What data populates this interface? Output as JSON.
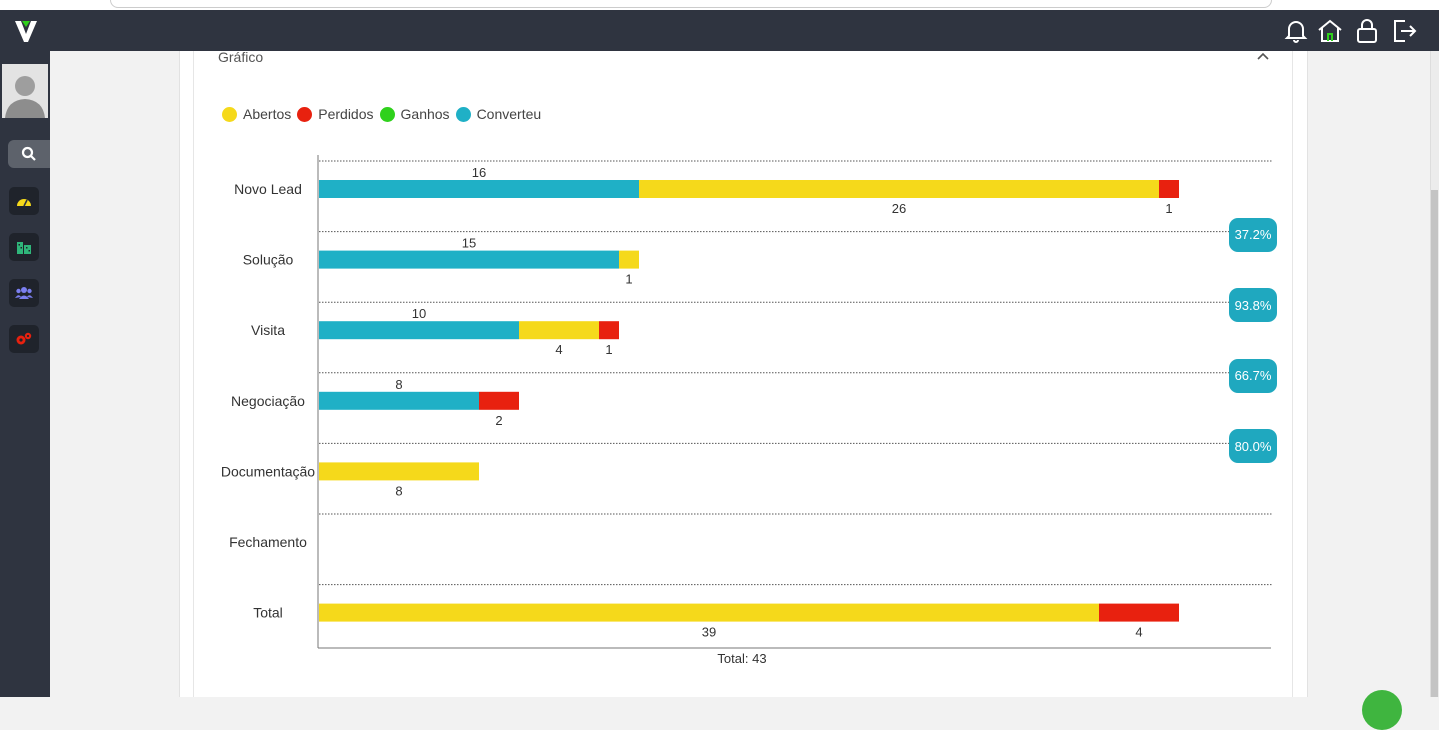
{
  "header": {
    "logo_text": "V",
    "icons": [
      "bell-icon",
      "home-icon",
      "lock-icon",
      "logout-icon"
    ]
  },
  "sidebar": {
    "items": [
      {
        "name": "search",
        "icon": "search-icon"
      },
      {
        "name": "dashboard",
        "icon": "speedometer-icon"
      },
      {
        "name": "buildings",
        "icon": "building-icon"
      },
      {
        "name": "users",
        "icon": "users-icon"
      },
      {
        "name": "settings",
        "icon": "gears-icon"
      }
    ]
  },
  "card": {
    "title": "Gráfico"
  },
  "legend": [
    {
      "label": "Abertos",
      "color": "#f5d91b"
    },
    {
      "label": "Perdidos",
      "color": "#e8210f"
    },
    {
      "label": "Ganhos",
      "color": "#2fd11c"
    },
    {
      "label": "Converteu",
      "color": "#1fb0c6"
    }
  ],
  "chart_data": {
    "type": "bar",
    "orientation": "horizontal",
    "stacked": true,
    "categories": [
      "Novo Lead",
      "Solução",
      "Visita",
      "Negociação",
      "Documentação",
      "Fechamento",
      "Total"
    ],
    "series": [
      {
        "name": "Converteu",
        "color": "#1fb0c6",
        "values": [
          16,
          15,
          10,
          8,
          0,
          0,
          0
        ]
      },
      {
        "name": "Abertos",
        "color": "#f5d91b",
        "values": [
          26,
          1,
          4,
          0,
          8,
          0,
          39
        ]
      },
      {
        "name": "Perdidos",
        "color": "#e8210f",
        "values": [
          1,
          0,
          1,
          2,
          0,
          0,
          4
        ]
      },
      {
        "name": "Ganhos",
        "color": "#2fd11c",
        "values": [
          0,
          0,
          0,
          0,
          0,
          0,
          0
        ]
      }
    ],
    "conversion_rates": [
      "37.2%",
      "93.8%",
      "66.7%",
      "80.0%"
    ],
    "xlim": [
      0,
      48
    ],
    "total_label": "Total: 43",
    "grid": "dotted horizontal separators"
  }
}
